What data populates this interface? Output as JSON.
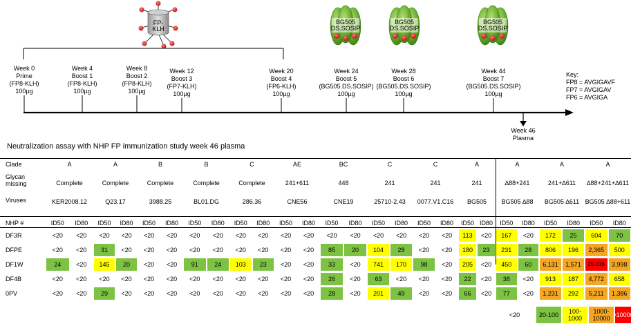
{
  "immunogens": {
    "fp_klh_label": [
      "FP-",
      "KLH"
    ],
    "trimer_label": [
      "BG505",
      "DS.SOSIP"
    ]
  },
  "timeline_events": [
    [
      "Week 0",
      "Prime",
      "(FP8-KLH)",
      "100µg"
    ],
    [
      "Week 4",
      "Boost 1",
      "(FP8-KLH)",
      "100µg"
    ],
    [
      "Week 8",
      "Boost 2",
      "(FP8-KLH)",
      "100µg"
    ],
    [
      "Week 12",
      "Boost 3",
      "(FP7-KLH)",
      "100µg"
    ],
    [
      "Week 20",
      "Boost 4",
      "(FP6-KLH)",
      "100µg"
    ],
    [
      "Week 24",
      "Boost 5",
      "(BG505.DS.SOSIP)",
      "100µg"
    ],
    [
      "Week 28",
      "Boost 6",
      "(BG505.DS.SOSIP)",
      "100µg"
    ],
    [
      "Week 44",
      "Boost 7",
      "(BG505.DS.SOSIP)",
      "100µg"
    ]
  ],
  "plasma_label": [
    "Week 46",
    "Plasma"
  ],
  "key": [
    "Key:",
    "FP8 = AVGIGAVF",
    "FP7 = AVGIGAV",
    "FP6 = AVGIGA"
  ],
  "table": {
    "title": "Neutralization assay with NHP FP immunization study week 46 plasma",
    "row_labels": {
      "clade": "Clade",
      "glycan": [
        "Glycan",
        "missing"
      ],
      "viruses": "Viruses",
      "nhp": "NHP #"
    },
    "clades": [
      "A",
      "A",
      "B",
      "B",
      "C",
      "AE",
      "BC",
      "C",
      "C",
      "A",
      "A",
      "A",
      "A"
    ],
    "glycans": [
      "Complete",
      "Complete",
      "Complete",
      "Complete",
      "Complete",
      "241+611",
      "448",
      "241",
      "241",
      "241",
      "∆88+241",
      "241+∆611",
      "∆88+241+∆611"
    ],
    "viruses": [
      "KER2008.12",
      "Q23.17",
      "3988.25",
      "BL01.DG",
      "286.36",
      "CNE56",
      "CNE19",
      "25710-2.43",
      "0077.V1.C16",
      "BG505",
      "BG505 ∆88",
      "BG505 ∆611",
      "BG505 ∆88+611"
    ],
    "id50": "ID50",
    "id80": "ID80",
    "rows": [
      {
        "nhp": "DF3R",
        "values": [
          "<20",
          "<20",
          "<20",
          "<20",
          "<20",
          "<20",
          "<20",
          "<20",
          "<20",
          "<20",
          "<20",
          "<20",
          "<20",
          "<20",
          "<20",
          "<20",
          "<20",
          "<20",
          "113",
          "<20",
          "167",
          "<20",
          "172",
          "25",
          "604",
          "70"
        ]
      },
      {
        "nhp": "DFPE",
        "values": [
          "<20",
          "<20",
          "31",
          "<20",
          "<20",
          "<20",
          "<20",
          "<20",
          "<20",
          "<20",
          "<20",
          "<20",
          "85",
          "20",
          "104",
          "28",
          "<20",
          "<20",
          "180",
          "23",
          "231",
          "28",
          "806",
          "196",
          "2,365",
          "500"
        ]
      },
      {
        "nhp": "DF1W",
        "values": [
          "24",
          "<20",
          "145",
          "20",
          "<20",
          "<20",
          "91",
          "24",
          "103",
          "23",
          "<20",
          "<20",
          "33",
          "<20",
          "741",
          "170",
          "98",
          "<20",
          "205",
          "<20",
          "450",
          "60",
          "6,131",
          "1,571",
          "25,016",
          "3,998"
        ]
      },
      {
        "nhp": "DF4B",
        "values": [
          "<20",
          "<20",
          "<20",
          "<20",
          "<20",
          "<20",
          "<20",
          "<20",
          "<20",
          "<20",
          "<20",
          "<20",
          "26",
          "<20",
          "63",
          "<20",
          "<20",
          "<20",
          "22",
          "<20",
          "38",
          "<20",
          "913",
          "187",
          "4,772",
          "658"
        ]
      },
      {
        "nhp": "0PV",
        "values": [
          "<20",
          "<20",
          "29",
          "<20",
          "<20",
          "<20",
          "<20",
          "<20",
          "<20",
          "<20",
          "<20",
          "<20",
          "28",
          "<20",
          "201",
          "49",
          "<20",
          "<20",
          "66",
          "<20",
          "77",
          "<20",
          "1,231",
          "292",
          "5,211",
          "1,386"
        ]
      }
    ]
  },
  "legend": [
    "<20",
    "20-100",
    "100-1000",
    "1000-10000",
    ">10000"
  ],
  "colors": {
    "lt20": "#ffffff",
    "g20_100": "#7dc242",
    "g100_1000": "#ffff00",
    "g1000_10000": "#f5a623",
    "gt10000": "#ff0000",
    "trimer": "#6ab02e",
    "red_dot": "#d21f1f"
  }
}
